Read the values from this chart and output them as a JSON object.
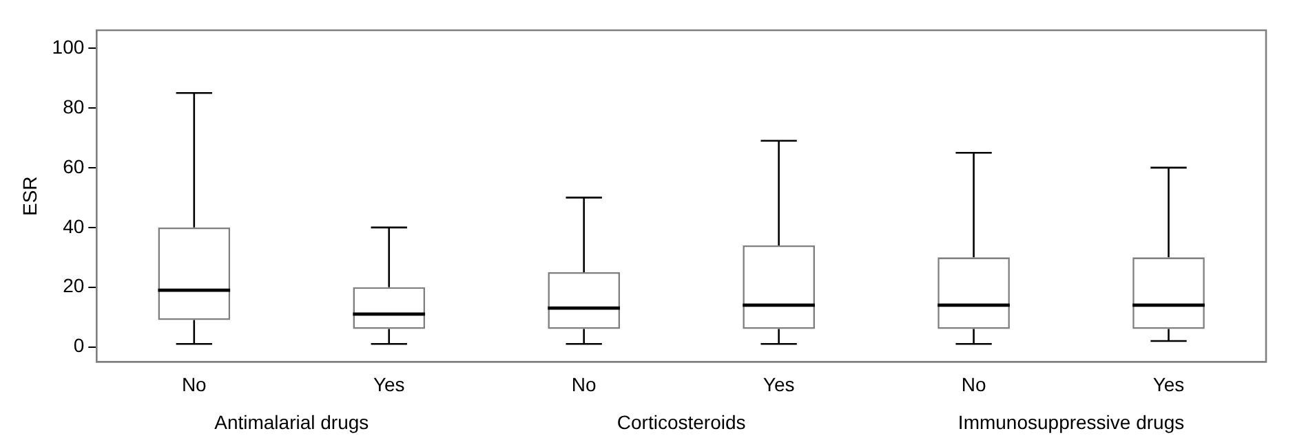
{
  "chart_data": {
    "type": "box",
    "ylabel": "ESR",
    "categories": [
      "No",
      "Yes",
      "No",
      "Yes",
      "No",
      "Yes"
    ],
    "boxes": [
      {
        "low": 1,
        "q1": 9,
        "median": 19,
        "q3": 40,
        "high": 85
      },
      {
        "low": 1,
        "q1": 6,
        "median": 11,
        "q3": 20,
        "high": 40
      },
      {
        "low": 1,
        "q1": 6,
        "median": 13,
        "q3": 25,
        "high": 50
      },
      {
        "low": 1,
        "q1": 6,
        "median": 14,
        "q3": 34,
        "high": 69
      },
      {
        "low": 1,
        "q1": 6,
        "median": 14,
        "q3": 30,
        "high": 65
      },
      {
        "low": 2,
        "q1": 6,
        "median": 14,
        "q3": 30,
        "high": 60
      }
    ],
    "color": "#7f7f7f",
    "ylim": [
      -5,
      106
    ],
    "yticks": [
      0,
      20,
      40,
      60,
      80,
      100
    ],
    "grid": false,
    "legend": false,
    "annotations": [
      "Antimalarial drugs",
      "Corticosteroids",
      "Immunosuppressive drugs"
    ]
  }
}
